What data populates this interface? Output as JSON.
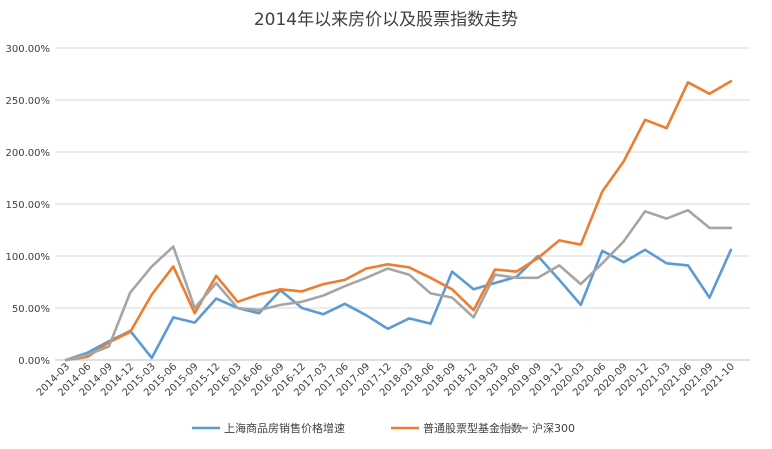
{
  "chart_data": {
    "type": "line",
    "title": "2014年以来房价以及股票指数走势",
    "xlabel": "",
    "ylabel": "",
    "ylim": [
      0,
      300
    ],
    "y_ticks": [
      "0.00%",
      "50.00%",
      "100.00%",
      "150.00%",
      "200.00%",
      "250.00%",
      "300.00%"
    ],
    "grid": true,
    "legend_position": "bottom",
    "categories": [
      "2014-03",
      "2014-06",
      "2014-09",
      "2014-12",
      "2015-03",
      "2015-06",
      "2015-09",
      "2015-12",
      "2016-03",
      "2016-06",
      "2016-09",
      "2016-12",
      "2017-03",
      "2017-06",
      "2017-09",
      "2017-12",
      "2018-03",
      "2018-06",
      "2018-09",
      "2018-12",
      "2019-03",
      "2019-06",
      "2019-09",
      "2019-12",
      "2020-03",
      "2020-06",
      "2020-09",
      "2020-12",
      "2021-03",
      "2021-06",
      "2021-09",
      "2021-10"
    ],
    "series": [
      {
        "name": "上海商品房销售价格增速",
        "color": "#5b9bd5",
        "values": [
          0,
          7,
          18,
          28,
          2,
          41,
          36,
          59,
          50,
          45,
          67,
          50,
          44,
          54,
          43,
          30,
          40,
          35,
          85,
          68,
          74,
          80,
          100,
          77,
          53,
          105,
          94,
          106,
          93,
          91,
          60,
          106
        ]
      },
      {
        "name": "普通股票型基金指数",
        "color": "#ed7d31",
        "values": [
          0,
          3,
          17,
          27,
          63,
          90,
          45,
          81,
          56,
          63,
          68,
          66,
          73,
          77,
          88,
          92,
          89,
          79,
          68,
          48,
          87,
          85,
          98,
          115,
          111,
          162,
          191,
          231,
          223,
          267,
          256,
          268
        ]
      },
      {
        "name": "沪深300",
        "color": "#a5a5a5",
        "values": [
          0,
          5,
          13,
          65,
          90,
          109,
          50,
          74,
          50,
          48,
          53,
          56,
          62,
          71,
          79,
          88,
          82,
          64,
          60,
          41,
          82,
          79,
          79,
          91,
          73,
          93,
          114,
          143,
          136,
          144,
          127,
          127
        ]
      }
    ]
  }
}
